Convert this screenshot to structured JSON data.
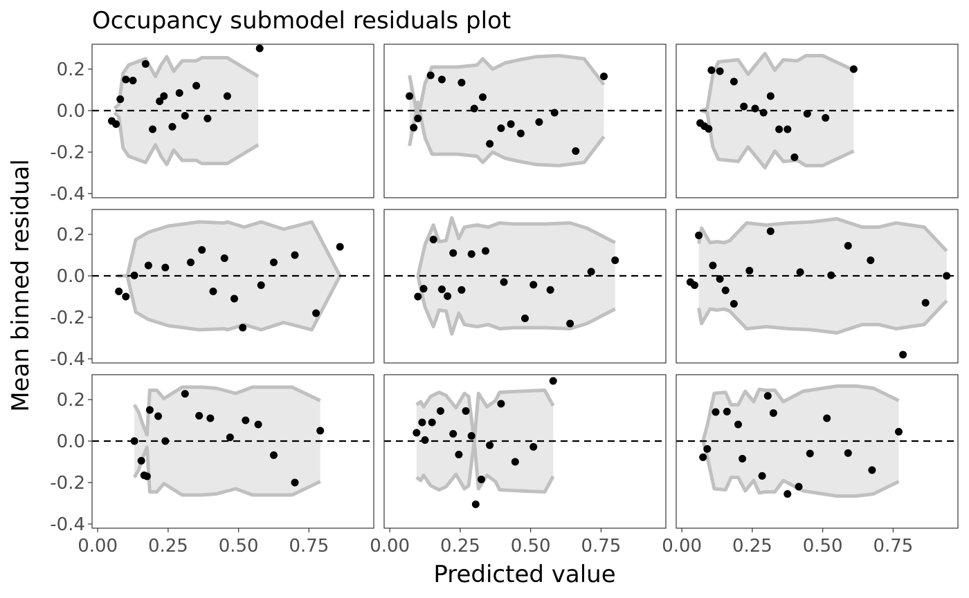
{
  "chart_data": {
    "type": "scatter",
    "title": "Occupancy submodel residuals plot",
    "xlabel": "Predicted value",
    "ylabel": "Mean binned residual",
    "layout": "3x3 facet grid",
    "xlim": [
      -0.02,
      0.98
    ],
    "ylim": [
      -0.42,
      0.32
    ],
    "x_ticks": [
      "0.00",
      "0.25",
      "0.50",
      "0.75"
    ],
    "x_tick_values": [
      0,
      0.25,
      0.5,
      0.75
    ],
    "y_ticks": [
      "-0.4",
      "-0.2",
      "0.0",
      "0.2"
    ],
    "y_tick_values": [
      -0.4,
      -0.2,
      0,
      0.2
    ],
    "reference_line": 0,
    "colors": {
      "points": "#000000",
      "band_fill": "#e8e8e8",
      "band_line": "#c0c0c0",
      "panel_border": "#333333",
      "tick_text": "#4d4d4d"
    },
    "panels": [
      {
        "points": [
          [
            0.05,
            -0.05
          ],
          [
            0.065,
            -0.065
          ],
          [
            0.08,
            0.055
          ],
          [
            0.1,
            0.15
          ],
          [
            0.125,
            0.145
          ],
          [
            0.17,
            0.225
          ],
          [
            0.195,
            -0.09
          ],
          [
            0.22,
            0.045
          ],
          [
            0.235,
            0.07
          ],
          [
            0.265,
            -0.078
          ],
          [
            0.29,
            0.085
          ],
          [
            0.31,
            -0.025
          ],
          [
            0.35,
            0.12
          ],
          [
            0.39,
            -0.038
          ],
          [
            0.46,
            0.07
          ],
          [
            0.575,
            0.3
          ]
        ],
        "band": [
          [
            0.06,
            0.01
          ],
          [
            0.075,
            0.03
          ],
          [
            0.09,
            0.18
          ],
          [
            0.11,
            0.22
          ],
          [
            0.17,
            0.25
          ],
          [
            0.205,
            0.165
          ],
          [
            0.225,
            0.22
          ],
          [
            0.245,
            0.26
          ],
          [
            0.27,
            0.19
          ],
          [
            0.3,
            0.24
          ],
          [
            0.35,
            0.24
          ],
          [
            0.37,
            0.255
          ],
          [
            0.46,
            0.255
          ],
          [
            0.57,
            0.165
          ]
        ]
      },
      {
        "points": [
          [
            0.07,
            0.07
          ],
          [
            0.085,
            -0.082
          ],
          [
            0.1,
            -0.038
          ],
          [
            0.145,
            0.17
          ],
          [
            0.185,
            0.15
          ],
          [
            0.255,
            0.135
          ],
          [
            0.3,
            0.01
          ],
          [
            0.33,
            0.065
          ],
          [
            0.355,
            -0.16
          ],
          [
            0.395,
            -0.085
          ],
          [
            0.43,
            -0.065
          ],
          [
            0.465,
            -0.11
          ],
          [
            0.53,
            -0.055
          ],
          [
            0.585,
            -0.01
          ],
          [
            0.66,
            -0.195
          ],
          [
            0.76,
            0.165
          ]
        ],
        "band": [
          [
            0.07,
            0.17
          ],
          [
            0.08,
            0.1
          ],
          [
            0.09,
            0.03
          ],
          [
            0.1,
            -0.04
          ],
          [
            0.125,
            0.13
          ],
          [
            0.15,
            0.21
          ],
          [
            0.24,
            0.21
          ],
          [
            0.31,
            0.22
          ],
          [
            0.33,
            0.25
          ],
          [
            0.365,
            0.2
          ],
          [
            0.41,
            0.23
          ],
          [
            0.46,
            0.245
          ],
          [
            0.52,
            0.26
          ],
          [
            0.6,
            0.265
          ],
          [
            0.69,
            0.25
          ],
          [
            0.76,
            0.125
          ]
        ]
      },
      {
        "points": [
          [
            0.065,
            -0.06
          ],
          [
            0.08,
            -0.075
          ],
          [
            0.095,
            -0.088
          ],
          [
            0.105,
            0.195
          ],
          [
            0.135,
            0.19
          ],
          [
            0.185,
            0.14
          ],
          [
            0.22,
            0.02
          ],
          [
            0.26,
            0.01
          ],
          [
            0.29,
            -0.01
          ],
          [
            0.315,
            0.07
          ],
          [
            0.345,
            -0.09
          ],
          [
            0.375,
            -0.09
          ],
          [
            0.4,
            -0.225
          ],
          [
            0.445,
            -0.015
          ],
          [
            0.51,
            -0.035
          ],
          [
            0.61,
            0.2
          ]
        ],
        "band": [
          [
            0.07,
            0.0
          ],
          [
            0.09,
            0.01
          ],
          [
            0.11,
            0.175
          ],
          [
            0.13,
            0.235
          ],
          [
            0.2,
            0.245
          ],
          [
            0.235,
            0.175
          ],
          [
            0.265,
            0.225
          ],
          [
            0.295,
            0.275
          ],
          [
            0.33,
            0.195
          ],
          [
            0.36,
            0.245
          ],
          [
            0.41,
            0.24
          ],
          [
            0.44,
            0.265
          ],
          [
            0.5,
            0.265
          ],
          [
            0.61,
            0.195
          ]
        ]
      },
      {
        "points": [
          [
            0.075,
            -0.075
          ],
          [
            0.1,
            -0.1
          ],
          [
            0.13,
            0.002
          ],
          [
            0.18,
            0.05
          ],
          [
            0.24,
            0.04
          ],
          [
            0.33,
            0.065
          ],
          [
            0.37,
            0.125
          ],
          [
            0.41,
            -0.075
          ],
          [
            0.45,
            0.085
          ],
          [
            0.485,
            -0.11
          ],
          [
            0.515,
            -0.25
          ],
          [
            0.58,
            -0.045
          ],
          [
            0.625,
            0.065
          ],
          [
            0.7,
            0.1
          ],
          [
            0.775,
            -0.18
          ],
          [
            0.86,
            0.14
          ]
        ],
        "band": [
          [
            0.07,
            0.0
          ],
          [
            0.105,
            0.0
          ],
          [
            0.135,
            0.175
          ],
          [
            0.18,
            0.21
          ],
          [
            0.25,
            0.24
          ],
          [
            0.36,
            0.26
          ],
          [
            0.45,
            0.255
          ],
          [
            0.46,
            0.26
          ],
          [
            0.52,
            0.235
          ],
          [
            0.58,
            0.26
          ],
          [
            0.66,
            0.225
          ],
          [
            0.76,
            0.26
          ],
          [
            0.86,
            0.0
          ]
        ]
      },
      {
        "points": [
          [
            0.1,
            -0.1
          ],
          [
            0.12,
            -0.062
          ],
          [
            0.155,
            0.175
          ],
          [
            0.185,
            -0.065
          ],
          [
            0.205,
            -0.098
          ],
          [
            0.225,
            0.11
          ],
          [
            0.255,
            -0.068
          ],
          [
            0.29,
            0.105
          ],
          [
            0.34,
            0.12
          ],
          [
            0.405,
            -0.03
          ],
          [
            0.48,
            -0.205
          ],
          [
            0.51,
            -0.043
          ],
          [
            0.57,
            -0.068
          ],
          [
            0.64,
            -0.23
          ],
          [
            0.715,
            0.02
          ],
          [
            0.8,
            0.075
          ]
        ],
        "band": [
          [
            0.1,
            0.0
          ],
          [
            0.125,
            0.15
          ],
          [
            0.155,
            0.245
          ],
          [
            0.175,
            0.165
          ],
          [
            0.2,
            0.17
          ],
          [
            0.22,
            0.28
          ],
          [
            0.245,
            0.18
          ],
          [
            0.265,
            0.235
          ],
          [
            0.31,
            0.245
          ],
          [
            0.35,
            0.235
          ],
          [
            0.39,
            0.255
          ],
          [
            0.44,
            0.25
          ],
          [
            0.55,
            0.25
          ],
          [
            0.64,
            0.255
          ],
          [
            0.7,
            0.23
          ],
          [
            0.8,
            0.16
          ]
        ]
      },
      {
        "points": [
          [
            0.03,
            -0.03
          ],
          [
            0.045,
            -0.045
          ],
          [
            0.06,
            0.195
          ],
          [
            0.11,
            0.05
          ],
          [
            0.135,
            -0.015
          ],
          [
            0.155,
            -0.07
          ],
          [
            0.185,
            -0.135
          ],
          [
            0.24,
            0.025
          ],
          [
            0.315,
            0.215
          ],
          [
            0.42,
            0.018
          ],
          [
            0.53,
            0.003
          ],
          [
            0.59,
            0.145
          ],
          [
            0.67,
            0.075
          ],
          [
            0.785,
            -0.38
          ],
          [
            0.865,
            -0.13
          ],
          [
            0.94,
            0.0
          ]
        ],
        "band": [
          [
            0.06,
            0.155
          ],
          [
            0.07,
            0.23
          ],
          [
            0.1,
            0.16
          ],
          [
            0.125,
            0.165
          ],
          [
            0.15,
            0.16
          ],
          [
            0.17,
            0.17
          ],
          [
            0.23,
            0.255
          ],
          [
            0.3,
            0.245
          ],
          [
            0.38,
            0.255
          ],
          [
            0.46,
            0.26
          ],
          [
            0.55,
            0.275
          ],
          [
            0.64,
            0.235
          ],
          [
            0.7,
            0.235
          ],
          [
            0.76,
            0.255
          ],
          [
            0.86,
            0.235
          ],
          [
            0.94,
            0.12
          ]
        ]
      },
      {
        "points": [
          [
            0.13,
            0.0
          ],
          [
            0.155,
            -0.095
          ],
          [
            0.165,
            -0.165
          ],
          [
            0.175,
            -0.17
          ],
          [
            0.185,
            0.15
          ],
          [
            0.215,
            0.12
          ],
          [
            0.24,
            0.0
          ],
          [
            0.31,
            0.228
          ],
          [
            0.36,
            0.122
          ],
          [
            0.4,
            0.11
          ],
          [
            0.47,
            0.018
          ],
          [
            0.525,
            0.1
          ],
          [
            0.57,
            0.08
          ],
          [
            0.625,
            -0.068
          ],
          [
            0.7,
            -0.2
          ],
          [
            0.79,
            0.05
          ]
        ],
        "band": [
          [
            0.13,
            0.175
          ],
          [
            0.145,
            0.14
          ],
          [
            0.16,
            0.08
          ],
          [
            0.175,
            0.03
          ],
          [
            0.185,
            0.245
          ],
          [
            0.21,
            0.245
          ],
          [
            0.235,
            0.205
          ],
          [
            0.3,
            0.26
          ],
          [
            0.37,
            0.26
          ],
          [
            0.42,
            0.255
          ],
          [
            0.49,
            0.23
          ],
          [
            0.55,
            0.26
          ],
          [
            0.69,
            0.26
          ],
          [
            0.79,
            0.195
          ]
        ]
      },
      {
        "points": [
          [
            0.095,
            0.04
          ],
          [
            0.115,
            0.09
          ],
          [
            0.125,
            0.005
          ],
          [
            0.15,
            0.09
          ],
          [
            0.18,
            0.145
          ],
          [
            0.225,
            0.035
          ],
          [
            0.245,
            -0.065
          ],
          [
            0.27,
            0.145
          ],
          [
            0.29,
            0.025
          ],
          [
            0.305,
            -0.305
          ],
          [
            0.325,
            -0.185
          ],
          [
            0.355,
            -0.02
          ],
          [
            0.395,
            0.18
          ],
          [
            0.445,
            -0.1
          ],
          [
            0.51,
            -0.028
          ],
          [
            0.58,
            0.29
          ]
        ],
        "band": [
          [
            0.095,
            0.175
          ],
          [
            0.11,
            0.19
          ],
          [
            0.12,
            0.165
          ],
          [
            0.145,
            0.215
          ],
          [
            0.175,
            0.235
          ],
          [
            0.2,
            0.22
          ],
          [
            0.235,
            0.16
          ],
          [
            0.265,
            0.23
          ],
          [
            0.28,
            0.215
          ],
          [
            0.3,
            0.0
          ],
          [
            0.315,
            -0.23
          ],
          [
            0.345,
            -0.165
          ],
          [
            0.375,
            -0.195
          ],
          [
            0.39,
            -0.235
          ],
          [
            0.46,
            -0.24
          ],
          [
            0.55,
            -0.245
          ],
          [
            0.58,
            -0.17
          ]
        ]
      },
      {
        "points": [
          [
            0.075,
            -0.078
          ],
          [
            0.09,
            -0.038
          ],
          [
            0.12,
            0.14
          ],
          [
            0.16,
            0.142
          ],
          [
            0.2,
            0.08
          ],
          [
            0.215,
            -0.085
          ],
          [
            0.285,
            -0.168
          ],
          [
            0.305,
            0.218
          ],
          [
            0.325,
            0.135
          ],
          [
            0.375,
            -0.255
          ],
          [
            0.415,
            -0.22
          ],
          [
            0.455,
            -0.06
          ],
          [
            0.515,
            0.11
          ],
          [
            0.59,
            -0.058
          ],
          [
            0.675,
            -0.14
          ],
          [
            0.77,
            0.045
          ]
        ],
        "band": [
          [
            0.075,
            0.0
          ],
          [
            0.09,
            0.075
          ],
          [
            0.115,
            0.23
          ],
          [
            0.155,
            0.235
          ],
          [
            0.175,
            0.175
          ],
          [
            0.2,
            0.175
          ],
          [
            0.225,
            0.24
          ],
          [
            0.255,
            0.19
          ],
          [
            0.275,
            0.25
          ],
          [
            0.295,
            0.245
          ],
          [
            0.33,
            0.245
          ],
          [
            0.36,
            0.19
          ],
          [
            0.43,
            0.24
          ],
          [
            0.55,
            0.265
          ],
          [
            0.62,
            0.265
          ],
          [
            0.68,
            0.255
          ],
          [
            0.77,
            0.195
          ]
        ]
      }
    ]
  }
}
